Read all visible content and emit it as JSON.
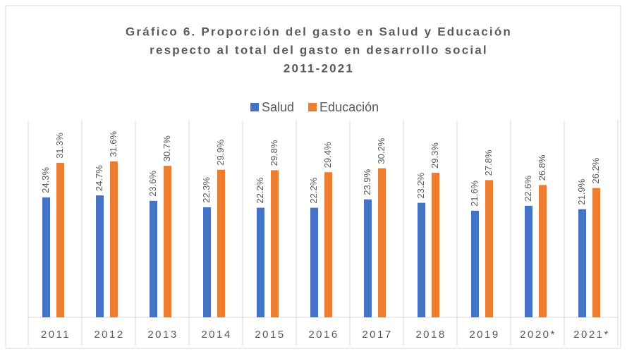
{
  "chart_data": {
    "type": "bar",
    "title": [
      "Gráfico 6. Proporción del gasto en Salud y Educación",
      "respecto al total del gasto en desarrollo social",
      "2011-2021"
    ],
    "categories": [
      "2011",
      "2012",
      "2013",
      "2014",
      "2015",
      "2016",
      "2017",
      "2018",
      "2019",
      "2020*",
      "2021*"
    ],
    "series": [
      {
        "name": "Salud",
        "color": "#4472c4",
        "values": [
          24.3,
          24.7,
          23.6,
          22.3,
          22.2,
          22.2,
          23.9,
          23.2,
          21.6,
          22.6,
          21.9
        ],
        "value_labels": [
          "24.3%",
          "24.7%",
          "23.6%",
          "22.3%",
          "22.2%",
          "22.2%",
          "23.9%",
          "23.2%",
          "21.6%",
          "22.6%",
          "21.9%"
        ]
      },
      {
        "name": "Educación",
        "color": "#ed7d31",
        "values": [
          31.3,
          31.6,
          30.7,
          29.9,
          29.8,
          29.4,
          30.2,
          29.3,
          27.8,
          26.8,
          26.2
        ],
        "value_labels": [
          "31.3%",
          "31.6%",
          "30.7%",
          "29.9%",
          "29.8%",
          "29.4%",
          "30.2%",
          "29.3%",
          "27.8%",
          "26.8%",
          "26.2%"
        ]
      }
    ],
    "ylim": [
      0,
      40
    ],
    "legend": "top"
  }
}
